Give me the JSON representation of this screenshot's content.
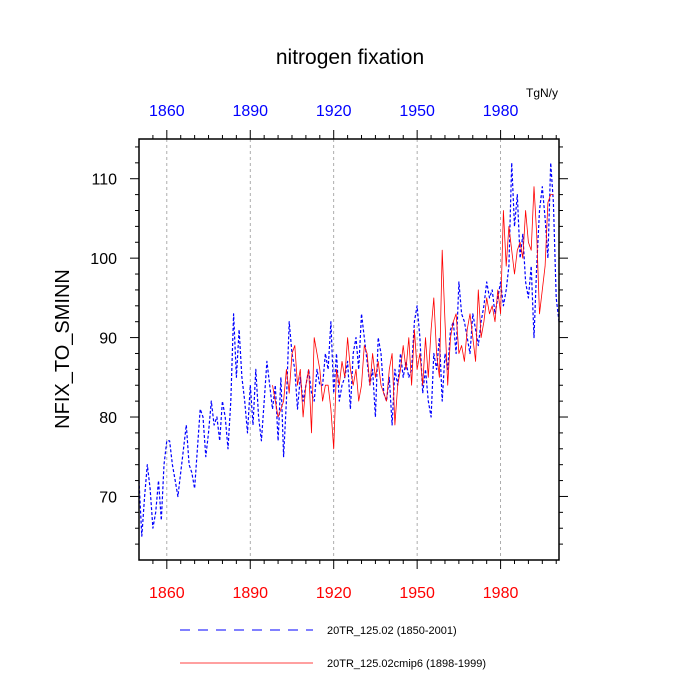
{
  "chart_data": {
    "type": "line",
    "title": "nitrogen fixation",
    "units": "TgN/y",
    "ylabel": "NFIX_TO_SMINN",
    "xlabel": "",
    "xlim": [
      1850,
      2001
    ],
    "ylim": [
      62,
      115
    ],
    "x_ticks": [
      1860,
      1890,
      1920,
      1950,
      1980
    ],
    "y_ticks": [
      70,
      80,
      90,
      100,
      110
    ],
    "x_tick_labels": [
      "1860",
      "1890",
      "1920",
      "1950",
      "1980"
    ],
    "y_tick_labels": [
      "70",
      "80",
      "90",
      "100",
      "110"
    ],
    "colors": {
      "bottom_axis_labels": "#ff0000",
      "top_axis_labels": "#0000ff",
      "grid": "#999999"
    },
    "grid": "vertical dashed at major x ticks",
    "legend_position": "bottom",
    "series": [
      {
        "name": "20TR_125.02 (1850-2001)",
        "color": "#0000ff",
        "style": "dashed",
        "x_start": 1850,
        "values": [
          72,
          65,
          70,
          74,
          71,
          66,
          68,
          72,
          67,
          74,
          77,
          77,
          74,
          72,
          70,
          73,
          76,
          79,
          74,
          73,
          71,
          76,
          81,
          80,
          75,
          78,
          82,
          79,
          80,
          77,
          82,
          80,
          76,
          82,
          93,
          85,
          91,
          85,
          82,
          78,
          84,
          79,
          86,
          80,
          77,
          82,
          87,
          84,
          81,
          84,
          77,
          85,
          75,
          82,
          92,
          88,
          86,
          81,
          85,
          82,
          84,
          86,
          83,
          82,
          86,
          84,
          84,
          88,
          86,
          92,
          83,
          88,
          82,
          84,
          85,
          87,
          81,
          88,
          90,
          86,
          93,
          90,
          87,
          84,
          86,
          80,
          90,
          88,
          83,
          82,
          85,
          79,
          86,
          84,
          88,
          85,
          87,
          85,
          86,
          92,
          94,
          90,
          83,
          86,
          82,
          80,
          88,
          86,
          90,
          82,
          88,
          86,
          91,
          92,
          88,
          97,
          93,
          92,
          90,
          88,
          93,
          91,
          89,
          92,
          94,
          97,
          95,
          96,
          93,
          95,
          97,
          94,
          96,
          99,
          112,
          104,
          108,
          100,
          103,
          97,
          95,
          99,
          90,
          99,
          106,
          109,
          105,
          100,
          112,
          107,
          95,
          92
        ]
      },
      {
        "name": "20TR_125.02cmip6 (1898-1999)",
        "color": "#ff0000",
        "style": "solid",
        "x_start": 1898,
        "values": [
          84,
          82,
          80,
          81,
          82,
          86,
          83,
          88,
          89,
          84,
          86,
          80,
          84,
          86,
          78,
          90,
          88,
          86,
          82,
          84,
          84,
          81,
          76,
          86,
          84,
          87,
          85,
          90,
          86,
          84,
          86,
          82,
          84,
          89,
          88,
          84,
          88,
          85,
          87,
          84,
          83,
          82,
          86,
          88,
          79,
          84,
          86,
          89,
          86,
          90,
          84,
          91,
          86,
          88,
          84,
          90,
          85,
          91,
          95,
          88,
          85,
          101,
          92,
          84,
          90,
          92,
          93,
          88,
          89,
          87,
          91,
          93,
          90,
          87,
          96,
          90,
          92,
          95,
          93,
          94,
          92,
          96,
          93,
          106,
          99,
          104,
          101,
          98,
          101,
          102,
          100,
          106,
          102,
          101,
          109,
          103,
          93,
          96,
          99,
          107,
          108,
          108
        ]
      }
    ]
  }
}
